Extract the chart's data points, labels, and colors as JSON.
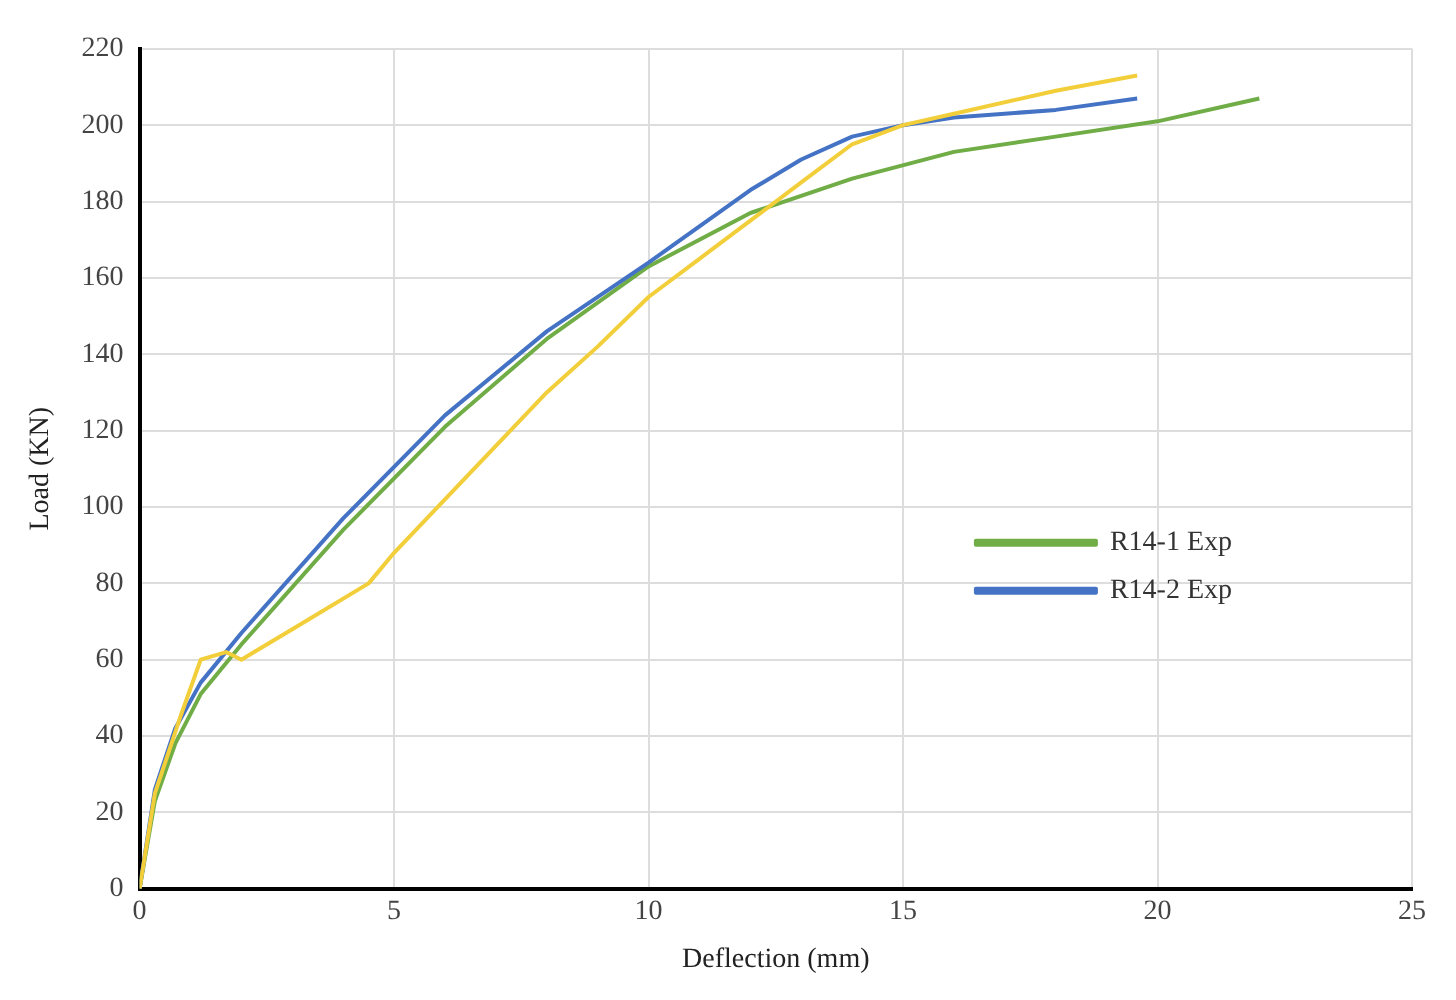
{
  "chart_data": {
    "type": "line",
    "xlabel": "Deflection (mm)",
    "ylabel": "Load (KN)",
    "xlim": [
      0,
      25
    ],
    "xticks": [
      0,
      5,
      10,
      15,
      20,
      25
    ],
    "ylim": [
      0,
      220
    ],
    "yticks": [
      0,
      20,
      40,
      60,
      80,
      100,
      120,
      140,
      160,
      180,
      200,
      220
    ],
    "grid": true,
    "legend": "right",
    "marker": "none",
    "line_style": "solid",
    "series": [
      {
        "name": "R14-1 Exp",
        "color": "#70ad47",
        "x": [
          0,
          0.3,
          0.7,
          1.2,
          2,
          4,
          6,
          8,
          10,
          12,
          14,
          16,
          18,
          20,
          22
        ],
        "values": [
          0,
          23,
          38,
          51,
          64,
          94,
          121,
          144,
          163,
          177,
          186,
          193,
          197,
          201,
          207
        ]
      },
      {
        "name": "R14-2 Exp",
        "color": "#4472c4",
        "x": [
          0,
          0.3,
          0.7,
          1.2,
          2,
          4,
          6,
          8,
          10,
          12,
          13,
          14,
          15,
          16,
          18,
          19.6
        ],
        "values": [
          0,
          26,
          42,
          54,
          67,
          97,
          124,
          146,
          164,
          183,
          191,
          197,
          200,
          202,
          204,
          207
        ]
      },
      {
        "color": "#f2cf3a",
        "x": [
          0,
          0.3,
          0.8,
          1.2,
          1.7,
          2.0,
          3,
          4.5,
          5,
          6,
          7,
          8,
          9,
          10,
          11,
          12,
          13,
          14,
          15,
          16,
          18,
          19.6
        ],
        "values": [
          0,
          25,
          45,
          60,
          62,
          60,
          68,
          80,
          88,
          102,
          116,
          130,
          142,
          155,
          165,
          175,
          185,
          195,
          200,
          203,
          209,
          213
        ]
      }
    ]
  }
}
